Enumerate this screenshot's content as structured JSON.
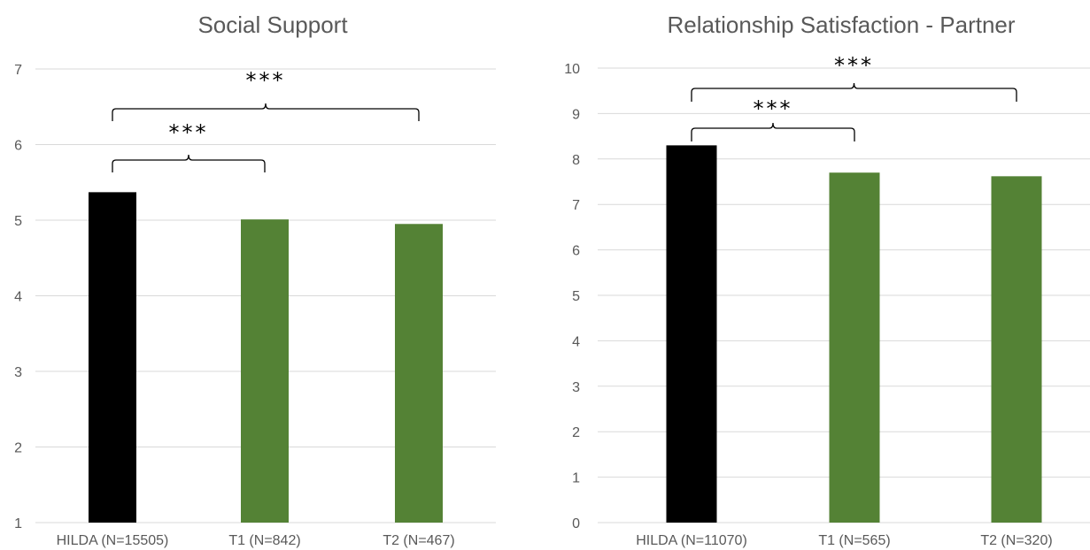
{
  "chart_data": [
    {
      "type": "bar",
      "title": "Social Support",
      "categories": [
        "HILDA (N=15505)",
        "T1 (N=842)",
        "T2 (N=467)"
      ],
      "values": [
        5.37,
        5.01,
        4.95
      ],
      "colors": [
        "#000000",
        "#548235",
        "#548235"
      ],
      "ylim": [
        1,
        7
      ],
      "yticks": [
        "1",
        "2",
        "3",
        "4",
        "5",
        "6",
        "7"
      ],
      "grid": true,
      "significance": [
        {
          "from": 0,
          "to": 1,
          "label": "***"
        },
        {
          "from": 0,
          "to": 2,
          "label": "***"
        }
      ]
    },
    {
      "type": "bar",
      "title": "Relationship Satisfaction - Partner",
      "categories": [
        "HILDA (N=11070)",
        "T1 (N=565)",
        "T2 (N=320)"
      ],
      "values": [
        8.3,
        7.7,
        7.62
      ],
      "colors": [
        "#000000",
        "#548235",
        "#548235"
      ],
      "ylim": [
        0,
        10
      ],
      "yticks": [
        "0",
        "1",
        "2",
        "3",
        "4",
        "5",
        "6",
        "7",
        "8",
        "9",
        "10"
      ],
      "grid": true,
      "significance": [
        {
          "from": 0,
          "to": 1,
          "label": "***"
        },
        {
          "from": 0,
          "to": 2,
          "label": "***"
        }
      ]
    }
  ]
}
